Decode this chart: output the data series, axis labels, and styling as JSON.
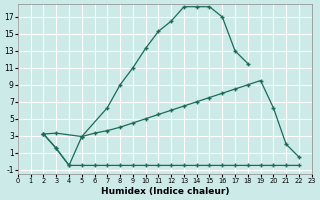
{
  "xlabel": "Humidex (Indice chaleur)",
  "bg_color": "#cceae7",
  "grid_color": "#ffffff",
  "line_color": "#1a6b5a",
  "xlim": [
    0,
    23
  ],
  "ylim": [
    -1.5,
    18.5
  ],
  "xticks": [
    0,
    1,
    2,
    3,
    4,
    5,
    6,
    7,
    8,
    9,
    10,
    11,
    12,
    13,
    14,
    15,
    16,
    17,
    18,
    19,
    20,
    21,
    22,
    23
  ],
  "yticks": [
    -1,
    1,
    3,
    5,
    7,
    9,
    11,
    13,
    15,
    17
  ],
  "line1_x": [
    2,
    3,
    5,
    7,
    8,
    9,
    10,
    11,
    12,
    13,
    14,
    15,
    16,
    17,
    18
  ],
  "line1_y": [
    3.2,
    3.3,
    2.9,
    6.3,
    9.0,
    11.0,
    13.3,
    15.3,
    16.5,
    18.2,
    18.2,
    18.2,
    17.0,
    13.0,
    11.5
  ],
  "line2_x": [
    2,
    3,
    4,
    5,
    6,
    7,
    8,
    9,
    10,
    11,
    12,
    13,
    14,
    15,
    16,
    17,
    18,
    19,
    20,
    21,
    22
  ],
  "line2_y": [
    3.2,
    1.5,
    -0.5,
    2.9,
    3.3,
    3.6,
    4.0,
    4.5,
    5.0,
    5.5,
    6.0,
    6.5,
    7.0,
    7.5,
    8.0,
    8.5,
    9.0,
    9.5,
    6.3,
    2.0,
    0.5
  ],
  "line3_x": [
    2,
    3,
    4,
    5,
    6,
    7,
    8,
    9,
    10,
    11,
    12,
    13,
    14,
    15,
    16,
    17,
    18,
    19,
    20,
    21,
    22
  ],
  "line3_y": [
    3.2,
    1.5,
    -0.5,
    -0.5,
    -0.5,
    -0.5,
    -0.5,
    -0.5,
    -0.5,
    -0.5,
    -0.5,
    -0.5,
    -0.5,
    -0.5,
    -0.5,
    -0.5,
    -0.5,
    -0.5,
    -0.5,
    -0.5,
    -0.5
  ]
}
